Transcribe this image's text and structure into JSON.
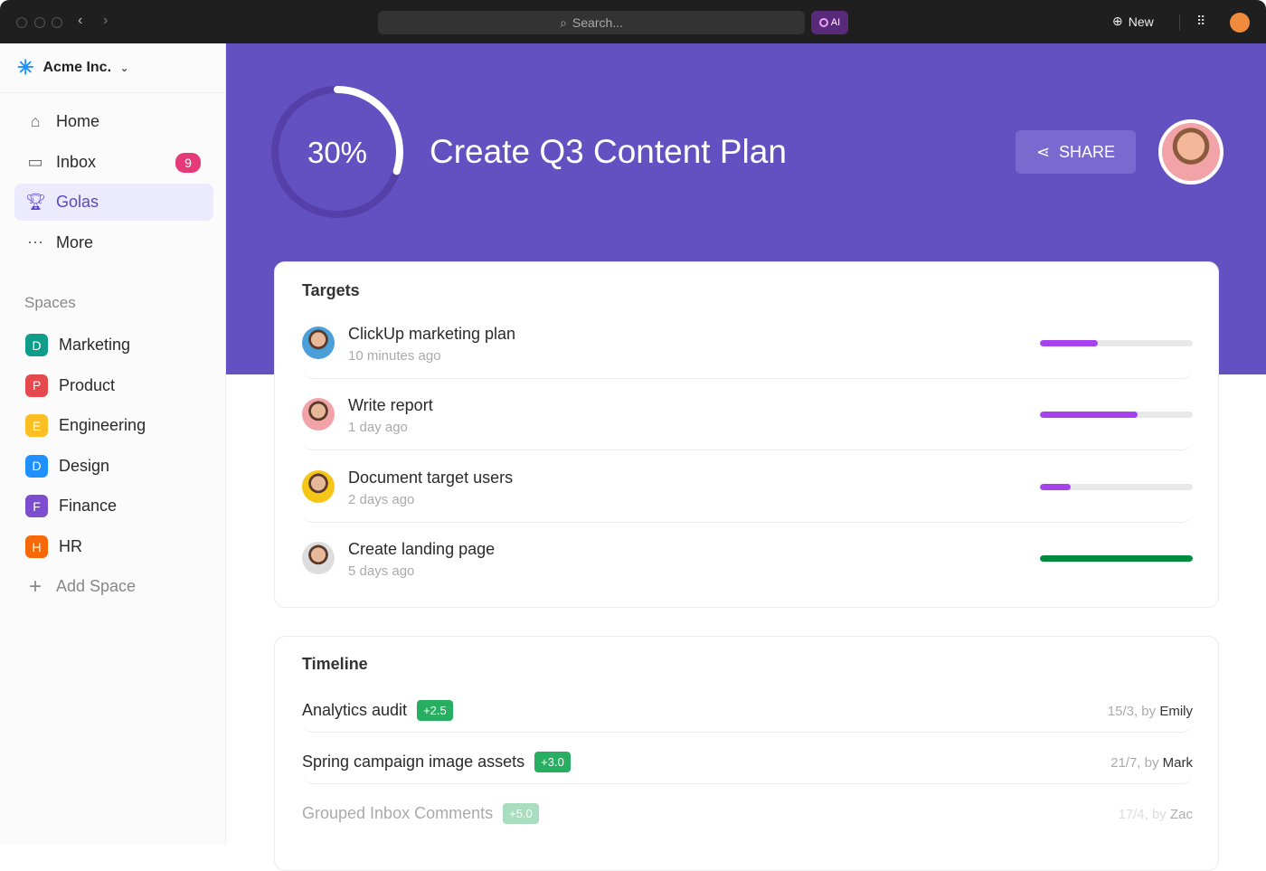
{
  "topbar": {
    "search_placeholder": "Search...",
    "ai_label": "AI",
    "new_label": "New"
  },
  "sidebar": {
    "workspace": "Acme Inc.",
    "nav": [
      {
        "label": "Home",
        "icon": "home-icon"
      },
      {
        "label": "Inbox",
        "icon": "inbox-icon",
        "badge": "9"
      },
      {
        "label": "Golas",
        "icon": "trophy-icon",
        "active": true
      },
      {
        "label": "More",
        "icon": "more-icon"
      }
    ],
    "spaces_heading": "Spaces",
    "spaces": [
      {
        "letter": "D",
        "label": "Marketing",
        "color": "#0f9d8a"
      },
      {
        "letter": "P",
        "label": "Product",
        "color": "#e5484d"
      },
      {
        "letter": "E",
        "label": "Engineering",
        "color": "#fbbf24"
      },
      {
        "letter": "D",
        "label": "Design",
        "color": "#1e90ff"
      },
      {
        "letter": "F",
        "label": "Finance",
        "color": "#7c4dcc"
      },
      {
        "letter": "H",
        "label": "HR",
        "color": "#f76808"
      }
    ],
    "add_space": "Add Space"
  },
  "goal": {
    "progress_label": "30%",
    "progress": 0.3,
    "title": "Create Q3 Content Plan",
    "share_label": "SHARE",
    "accent": "#6451c1"
  },
  "targets": {
    "heading": "Targets",
    "items": [
      {
        "name": "ClickUp marketing plan",
        "time": "10 minutes ago",
        "progress": 38,
        "color": "#a742ee"
      },
      {
        "name": "Write report",
        "time": "1 day ago",
        "progress": 64,
        "color": "#a742ee"
      },
      {
        "name": "Document target users",
        "time": "2 days ago",
        "progress": 20,
        "color": "#a742ee"
      },
      {
        "name": "Create landing page",
        "time": "5 days ago",
        "progress": 100,
        "color": "#008a3e"
      }
    ]
  },
  "timeline": {
    "heading": "Timeline",
    "items": [
      {
        "name": "Analytics audit",
        "tag": "+2.5",
        "date": "15/3, by",
        "user": "Emily"
      },
      {
        "name": "Spring campaign image assets",
        "tag": "+3.0",
        "date": "21/7, by",
        "user": "Mark"
      },
      {
        "name": "Grouped Inbox Comments",
        "tag": "+5.0",
        "date": "17/4, by",
        "user": "Zac"
      }
    ]
  }
}
